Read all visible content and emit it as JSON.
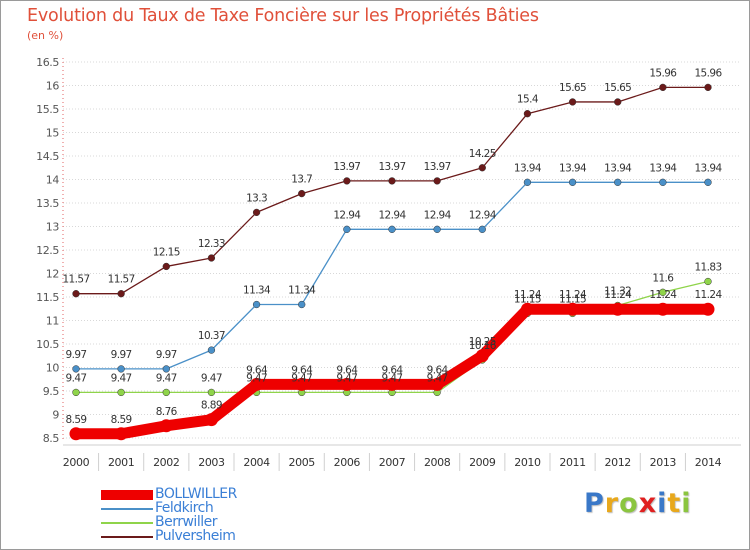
{
  "header": {
    "title": "Evolution du Taux de Taxe Foncière sur les Propriétés Bâties",
    "unit": "(en %)"
  },
  "brand": {
    "letters": [
      "P",
      "r",
      "o",
      "x",
      "i",
      "t",
      "i"
    ],
    "colors": [
      "#3a78c8",
      "#e8a81c",
      "#8bc53f",
      "#e02020",
      "#3a78c8",
      "#e8a81c",
      "#8bc53f"
    ]
  },
  "chart_data": {
    "type": "line",
    "x": [
      2000,
      2001,
      2002,
      2003,
      2004,
      2005,
      2006,
      2007,
      2008,
      2009,
      2010,
      2011,
      2012,
      2013,
      2014
    ],
    "ylim": [
      8.5,
      16.5
    ],
    "yticks": [
      8.5,
      9,
      9.5,
      10,
      10.5,
      11,
      11.5,
      12,
      12.5,
      13,
      13.5,
      14,
      14.5,
      15,
      15.5,
      16,
      16.5
    ],
    "ytick_labels": [
      "8.5",
      "9",
      "9.5",
      "10",
      "10.5",
      "11",
      "11.5",
      "12",
      "12.5",
      "13",
      "13.5",
      "14",
      "14.5",
      "15",
      "15.5",
      "16",
      "16.5"
    ],
    "grid": "horizontal dotted",
    "legend_position": "bottom-left",
    "series": [
      {
        "name": "Pulversheim",
        "color": "#6b1a1a",
        "emphasis": false,
        "values": [
          11.57,
          11.57,
          12.15,
          12.33,
          13.3,
          13.7,
          13.97,
          13.97,
          13.97,
          14.25,
          15.4,
          15.65,
          15.65,
          15.96,
          15.96
        ],
        "labels": [
          "11.57",
          "11.57",
          "12.15",
          "12.33",
          "13.3",
          "13.7",
          "13.97",
          "13.97",
          "13.97",
          "14.25",
          "15.4",
          "15.65",
          "15.65",
          "15.96",
          "15.96"
        ]
      },
      {
        "name": "Feldkirch",
        "color": "#4a90c8",
        "emphasis": false,
        "values": [
          9.97,
          9.97,
          9.97,
          10.37,
          11.34,
          11.34,
          12.94,
          12.94,
          12.94,
          12.94,
          13.94,
          13.94,
          13.94,
          13.94,
          13.94
        ],
        "labels": [
          "9.97",
          "9.97",
          "9.97",
          "10.37",
          "11.34",
          "11.34",
          "12.94",
          "12.94",
          "12.94",
          "12.94",
          "13.94",
          "13.94",
          "13.94",
          "13.94",
          "13.94"
        ]
      },
      {
        "name": "Berrwiller",
        "color": "#8fd44a",
        "emphasis": false,
        "values": [
          9.47,
          9.47,
          9.47,
          9.47,
          9.47,
          9.47,
          9.47,
          9.47,
          9.47,
          10.16,
          11.15,
          11.15,
          11.32,
          11.6,
          11.83
        ],
        "labels": [
          "9.47",
          "9.47",
          "9.47",
          "9.47",
          "9.47",
          "9.47",
          "9.47",
          "9.47",
          "9.47",
          "10.16",
          "11.15",
          "11.15",
          "11.32",
          "11.6",
          "11.83"
        ]
      },
      {
        "name": "BOLLWILLER",
        "color": "#ee0000",
        "emphasis": true,
        "values": [
          8.59,
          8.59,
          8.76,
          8.89,
          9.64,
          9.64,
          9.64,
          9.64,
          9.64,
          10.25,
          11.24,
          11.24,
          11.24,
          11.24,
          11.24
        ],
        "labels": [
          "8.59",
          "8.59",
          "8.76",
          "8.89",
          "9.64",
          "9.64",
          "9.64",
          "9.64",
          "9.64",
          "10.25",
          "11.24",
          "11.24",
          "11.24",
          "11.24",
          "11.24"
        ]
      }
    ]
  },
  "legend": {
    "items": [
      {
        "label": "BOLLWILLER",
        "color": "#ee0000",
        "thick": true
      },
      {
        "label": "Feldkirch",
        "color": "#4a90c8",
        "thick": false
      },
      {
        "label": "Berrwiller",
        "color": "#8fd44a",
        "thick": false
      },
      {
        "label": "Pulversheim",
        "color": "#6b1a1a",
        "thick": false
      }
    ]
  }
}
